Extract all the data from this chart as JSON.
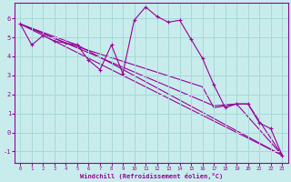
{
  "xlabel": "Windchill (Refroidissement éolien,°C)",
  "bg_color": "#c8ecec",
  "line_color": "#990099",
  "grid_color": "#a8d8d8",
  "xlim": [
    -0.5,
    23.5
  ],
  "ylim": [
    -1.6,
    6.8
  ],
  "yticks": [
    -1,
    0,
    1,
    2,
    3,
    4,
    5,
    6
  ],
  "xticks": [
    0,
    1,
    2,
    3,
    4,
    5,
    6,
    7,
    8,
    9,
    10,
    11,
    12,
    13,
    14,
    15,
    16,
    17,
    18,
    19,
    20,
    21,
    22,
    23
  ],
  "series_main": {
    "x": [
      0,
      1,
      2,
      3,
      4,
      5,
      6,
      7,
      8,
      9,
      10,
      11,
      12,
      13,
      14,
      15,
      16,
      17,
      18,
      19,
      20,
      21,
      22,
      23
    ],
    "y": [
      5.7,
      4.6,
      5.1,
      4.8,
      4.7,
      4.6,
      3.8,
      3.3,
      4.6,
      3.1,
      5.9,
      6.6,
      6.1,
      5.8,
      5.9,
      4.9,
      3.9,
      2.5,
      1.3,
      1.5,
      1.5,
      0.5,
      0.2,
      -1.2
    ]
  },
  "series_lines": [
    {
      "x": [
        0,
        23
      ],
      "y": [
        5.7,
        -1.2
      ]
    },
    {
      "x": [
        0,
        5,
        23
      ],
      "y": [
        5.7,
        4.6,
        -1.2
      ]
    },
    {
      "x": [
        0,
        4,
        17,
        19,
        23
      ],
      "y": [
        5.7,
        4.7,
        1.4,
        1.5,
        -1.2
      ]
    },
    {
      "x": [
        0,
        4,
        16,
        17,
        18,
        19,
        20,
        23
      ],
      "y": [
        5.7,
        4.7,
        2.4,
        1.3,
        1.4,
        1.5,
        1.5,
        -1.2
      ]
    }
  ]
}
